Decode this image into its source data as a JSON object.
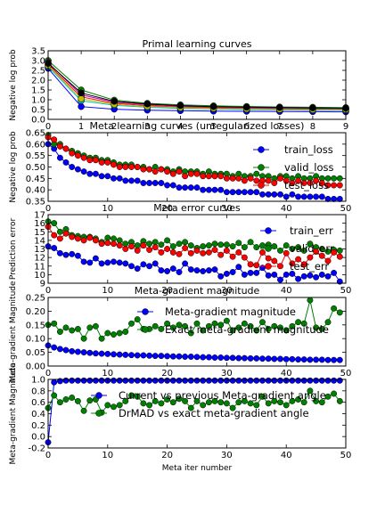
{
  "chart_data": [
    {
      "type": "line",
      "title": "Primal learning curves",
      "xlabel": "",
      "ylabel": "Negative log prob",
      "xlim": [
        0,
        9
      ],
      "ylim": [
        0,
        3.5
      ],
      "xticks": [
        0,
        1,
        2,
        3,
        4,
        5,
        6,
        7,
        8,
        9
      ],
      "yticks": [
        0.0,
        0.5,
        1.0,
        1.5,
        2.0,
        2.5,
        3.0,
        3.5
      ],
      "x": [
        0,
        1,
        2,
        3,
        4,
        5,
        6,
        7,
        8,
        9
      ],
      "series": [
        {
          "color": "#0000ff",
          "marker": "circle",
          "values": [
            2.6,
            0.65,
            0.52,
            0.47,
            0.44,
            0.42,
            0.41,
            0.4,
            0.39,
            0.38
          ]
        },
        {
          "color": "#008000",
          "marker": "circle",
          "values": [
            3.0,
            1.5,
            0.98,
            0.82,
            0.74,
            0.69,
            0.66,
            0.63,
            0.62,
            0.6
          ]
        },
        {
          "color": "#ff0000",
          "marker": "circle",
          "values": [
            2.8,
            1.15,
            0.82,
            0.7,
            0.63,
            0.59,
            0.56,
            0.54,
            0.53,
            0.52
          ]
        },
        {
          "color": "#00bfbf",
          "marker": "circle",
          "values": [
            2.7,
            0.95,
            0.72,
            0.62,
            0.56,
            0.53,
            0.5,
            0.48,
            0.47,
            0.46
          ]
        },
        {
          "color": "#bf00bf",
          "marker": "circle",
          "values": [
            2.9,
            1.25,
            0.88,
            0.75,
            0.67,
            0.62,
            0.59,
            0.57,
            0.55,
            0.54
          ]
        },
        {
          "color": "#bfbf00",
          "marker": "circle",
          "values": [
            2.75,
            1.05,
            0.77,
            0.66,
            0.6,
            0.56,
            0.53,
            0.51,
            0.5,
            0.49
          ]
        },
        {
          "color": "#000000",
          "marker": "circle",
          "values": [
            2.85,
            1.35,
            0.92,
            0.78,
            0.7,
            0.65,
            0.62,
            0.6,
            0.58,
            0.57
          ]
        }
      ]
    },
    {
      "type": "line",
      "title": "Meta learning curves (unregularized losses)",
      "xlabel": "",
      "ylabel": "Negative log prob",
      "xlim": [
        0,
        50
      ],
      "ylim": [
        0.35,
        0.65
      ],
      "xticks": [
        0,
        10,
        20,
        30,
        40,
        50
      ],
      "yticks": [
        0.35,
        0.4,
        0.45,
        0.5,
        0.55,
        0.6,
        0.65
      ],
      "x": [
        0,
        1,
        2,
        3,
        4,
        5,
        6,
        7,
        8,
        9,
        10,
        11,
        12,
        13,
        14,
        15,
        16,
        17,
        18,
        19,
        20,
        21,
        22,
        23,
        24,
        25,
        26,
        27,
        28,
        29,
        30,
        31,
        32,
        33,
        34,
        35,
        36,
        37,
        38,
        39,
        40,
        41,
        42,
        43,
        44,
        45,
        46,
        47,
        48,
        49
      ],
      "legend_position": "upper-right",
      "series": [
        {
          "name": "train_loss",
          "color": "#0000ff",
          "marker": "circle",
          "values": [
            0.6,
            0.58,
            0.54,
            0.52,
            0.5,
            0.49,
            0.48,
            0.47,
            0.47,
            0.46,
            0.46,
            0.45,
            0.45,
            0.44,
            0.44,
            0.44,
            0.43,
            0.43,
            0.43,
            0.43,
            0.42,
            0.42,
            0.41,
            0.41,
            0.41,
            0.41,
            0.4,
            0.4,
            0.4,
            0.4,
            0.39,
            0.39,
            0.39,
            0.39,
            0.39,
            0.39,
            0.38,
            0.38,
            0.38,
            0.38,
            0.37,
            0.38,
            0.37,
            0.37,
            0.37,
            0.37,
            0.37,
            0.36,
            0.36,
            0.36
          ]
        },
        {
          "name": "valid_loss",
          "color": "#008000",
          "marker": "circle",
          "values": [
            0.64,
            0.6,
            0.6,
            0.58,
            0.57,
            0.56,
            0.55,
            0.54,
            0.54,
            0.53,
            0.53,
            0.52,
            0.51,
            0.51,
            0.51,
            0.5,
            0.5,
            0.49,
            0.5,
            0.49,
            0.49,
            0.48,
            0.49,
            0.48,
            0.48,
            0.48,
            0.47,
            0.48,
            0.47,
            0.47,
            0.47,
            0.46,
            0.47,
            0.46,
            0.46,
            0.47,
            0.46,
            0.46,
            0.45,
            0.46,
            0.46,
            0.45,
            0.46,
            0.45,
            0.45,
            0.46,
            0.45,
            0.45,
            0.45,
            0.45
          ]
        },
        {
          "name": "test_loss",
          "color": "#ff0000",
          "marker": "circle",
          "values": [
            0.63,
            0.62,
            0.59,
            0.58,
            0.56,
            0.55,
            0.54,
            0.53,
            0.53,
            0.52,
            0.52,
            0.51,
            0.5,
            0.5,
            0.5,
            0.5,
            0.49,
            0.49,
            0.48,
            0.49,
            0.48,
            0.47,
            0.48,
            0.46,
            0.47,
            0.47,
            0.46,
            0.46,
            0.46,
            0.46,
            0.45,
            0.45,
            0.45,
            0.44,
            0.45,
            0.44,
            0.44,
            0.44,
            0.43,
            0.45,
            0.44,
            0.43,
            0.44,
            0.43,
            0.43,
            0.44,
            0.43,
            0.42,
            0.42,
            0.42
          ]
        }
      ]
    },
    {
      "type": "line",
      "title": "Meta error curves",
      "xlabel": "",
      "ylabel": "Prediction error",
      "xlim": [
        0,
        50
      ],
      "ylim": [
        9,
        17
      ],
      "xticks": [
        0,
        10,
        20,
        30,
        40,
        50
      ],
      "yticks": [
        9,
        10,
        11,
        12,
        13,
        14,
        15,
        16,
        17
      ],
      "x": [
        0,
        1,
        2,
        3,
        4,
        5,
        6,
        7,
        8,
        9,
        10,
        11,
        12,
        13,
        14,
        15,
        16,
        17,
        18,
        19,
        20,
        21,
        22,
        23,
        24,
        25,
        26,
        27,
        28,
        29,
        30,
        31,
        32,
        33,
        34,
        35,
        36,
        37,
        38,
        39,
        40,
        41,
        42,
        43,
        44,
        45,
        46,
        47,
        48,
        49
      ],
      "legend_position": "upper-right",
      "series": [
        {
          "name": "train_err",
          "color": "#0000ff",
          "marker": "circle",
          "values": [
            13.3,
            13.1,
            12.5,
            12.3,
            12.4,
            12.2,
            11.5,
            11.4,
            11.9,
            11.3,
            11.4,
            11.5,
            11.4,
            11.3,
            11.0,
            10.7,
            11.2,
            11.0,
            11.3,
            10.5,
            10.4,
            10.7,
            10.3,
            11.3,
            10.6,
            10.5,
            10.4,
            10.5,
            10.6,
            9.8,
            10.1,
            10.3,
            10.9,
            10.0,
            10.2,
            10.2,
            10.8,
            9.9,
            10.0,
            9.4,
            10.0,
            10.1,
            9.5,
            9.8,
            9.9,
            9.7,
            10.0,
            9.8,
            10.2,
            9.2
          ]
        },
        {
          "name": "valid_err",
          "color": "#008000",
          "marker": "circle",
          "values": [
            16.2,
            16.0,
            15.0,
            15.3,
            14.6,
            14.5,
            14.4,
            14.4,
            14.2,
            13.8,
            14.3,
            14.2,
            14.0,
            13.6,
            13.8,
            13.4,
            13.9,
            13.6,
            13.8,
            13.5,
            14.0,
            13.3,
            13.6,
            13.8,
            13.4,
            13.1,
            13.3,
            13.4,
            13.6,
            13.5,
            13.5,
            13.3,
            13.7,
            13.2,
            13.8,
            13.2,
            13.4,
            13.5,
            13.3,
            12.8,
            13.4,
            13.0,
            13.2,
            12.8,
            13.6,
            13.2,
            13.0,
            12.7,
            12.9,
            12.8
          ]
        },
        {
          "name": "test_err",
          "color": "#ff0000",
          "marker": "circle",
          "values": [
            15.6,
            14.6,
            14.2,
            14.8,
            14.4,
            14.2,
            14.0,
            14.3,
            14.0,
            13.6,
            13.7,
            13.6,
            13.4,
            13.0,
            13.3,
            12.8,
            13.4,
            12.9,
            13.2,
            12.6,
            13.0,
            12.6,
            12.4,
            13.1,
            12.5,
            12.8,
            12.5,
            12.6,
            12.9,
            12.3,
            12.8,
            12.1,
            12.6,
            12.0,
            11.2,
            11.1,
            12.6,
            11.9,
            11.6,
            11.0,
            12.5,
            11.3,
            11.8,
            11.2,
            12.0,
            12.7,
            12.2,
            11.6,
            12.6,
            12.1
          ]
        }
      ]
    },
    {
      "type": "line",
      "title": "Meta-gradient magnitude",
      "xlabel": "",
      "ylabel": "Meta-gradient Magnitude",
      "xlim": [
        0,
        50
      ],
      "ylim": [
        0,
        0.25
      ],
      "xticks": [
        0,
        10,
        20,
        30,
        40,
        50
      ],
      "yticks": [
        0.0,
        0.05,
        0.1,
        0.15,
        0.2,
        0.25
      ],
      "x": [
        0,
        1,
        2,
        3,
        4,
        5,
        6,
        7,
        8,
        9,
        10,
        11,
        12,
        13,
        14,
        15,
        16,
        17,
        18,
        19,
        20,
        21,
        22,
        23,
        24,
        25,
        26,
        27,
        28,
        29,
        30,
        31,
        32,
        33,
        34,
        35,
        36,
        37,
        38,
        39,
        40,
        41,
        42,
        43,
        44,
        45,
        46,
        47,
        48,
        49
      ],
      "legend_position": "upper-center",
      "series": [
        {
          "name": "Meta-gradient magnitude",
          "color": "#0000ff",
          "marker": "circle",
          "values": [
            0.075,
            0.068,
            0.062,
            0.058,
            0.054,
            0.052,
            0.05,
            0.048,
            0.046,
            0.045,
            0.044,
            0.043,
            0.042,
            0.041,
            0.04,
            0.039,
            0.039,
            0.038,
            0.037,
            0.037,
            0.036,
            0.035,
            0.035,
            0.034,
            0.034,
            0.033,
            0.032,
            0.032,
            0.031,
            0.031,
            0.03,
            0.03,
            0.029,
            0.029,
            0.028,
            0.028,
            0.027,
            0.027,
            0.026,
            0.026,
            0.025,
            0.025,
            0.024,
            0.024,
            0.023,
            0.023,
            0.023,
            0.022,
            0.022,
            0.022
          ]
        },
        {
          "name": "Exact meta-gradient magnitude",
          "color": "#008000",
          "marker": "circle",
          "values": [
            0.15,
            0.155,
            0.125,
            0.14,
            0.13,
            0.135,
            0.1,
            0.14,
            0.145,
            0.1,
            0.12,
            0.115,
            0.12,
            0.125,
            0.155,
            0.17,
            0.135,
            0.135,
            0.145,
            0.135,
            0.155,
            0.14,
            0.15,
            0.145,
            0.12,
            0.155,
            0.13,
            0.145,
            0.155,
            0.15,
            0.165,
            0.13,
            0.14,
            0.155,
            0.145,
            0.13,
            0.16,
            0.135,
            0.145,
            0.14,
            0.13,
            0.145,
            0.16,
            0.155,
            0.24,
            0.14,
            0.135,
            0.16,
            0.21,
            0.195
          ]
        }
      ]
    },
    {
      "type": "line",
      "title": "",
      "xlabel": "Meta iter number",
      "ylabel": "Meta-gradient Magnitude",
      "xlim": [
        0,
        50
      ],
      "ylim": [
        -0.2,
        1.0
      ],
      "xticks": [
        0,
        10,
        20,
        30,
        40,
        50
      ],
      "yticks": [
        -0.2,
        0.0,
        0.2,
        0.4,
        0.6,
        0.8,
        1.0
      ],
      "x": [
        0,
        1,
        2,
        3,
        4,
        5,
        6,
        7,
        8,
        9,
        10,
        11,
        12,
        13,
        14,
        15,
        16,
        17,
        18,
        19,
        20,
        21,
        22,
        23,
        24,
        25,
        26,
        27,
        28,
        29,
        30,
        31,
        32,
        33,
        34,
        35,
        36,
        37,
        38,
        39,
        40,
        41,
        42,
        43,
        44,
        45,
        46,
        47,
        48,
        49
      ],
      "legend_position": "center",
      "series": [
        {
          "name": "Current vs previous Meta-gradient angle",
          "color": "#0000ff",
          "marker": "circle",
          "values": [
            -0.1,
            0.95,
            0.97,
            0.98,
            0.98,
            0.98,
            0.98,
            0.98,
            0.98,
            0.98,
            0.98,
            0.98,
            0.98,
            0.98,
            0.98,
            0.98,
            0.98,
            0.98,
            0.98,
            0.98,
            0.98,
            0.98,
            0.98,
            0.98,
            0.98,
            0.98,
            0.98,
            0.98,
            0.98,
            0.98,
            0.98,
            0.98,
            0.98,
            0.98,
            0.98,
            0.98,
            0.98,
            0.98,
            0.98,
            0.98,
            0.98,
            0.98,
            0.98,
            0.98,
            0.98,
            0.98,
            0.98,
            0.98,
            0.98,
            0.98
          ]
        },
        {
          "name": "DrMAD vs exact meta-gradient angle",
          "color": "#008000",
          "marker": "circle",
          "values": [
            0.5,
            0.72,
            0.6,
            0.65,
            0.68,
            0.62,
            0.45,
            0.63,
            0.65,
            0.42,
            0.55,
            0.52,
            0.55,
            0.62,
            0.72,
            0.7,
            0.58,
            0.55,
            0.62,
            0.58,
            0.65,
            0.6,
            0.66,
            0.62,
            0.5,
            0.62,
            0.55,
            0.6,
            0.62,
            0.6,
            0.58,
            0.5,
            0.6,
            0.62,
            0.58,
            0.55,
            0.7,
            0.58,
            0.62,
            0.6,
            0.55,
            0.62,
            0.65,
            0.6,
            0.8,
            0.62,
            0.6,
            0.7,
            0.75,
            0.62
          ]
        }
      ]
    }
  ]
}
